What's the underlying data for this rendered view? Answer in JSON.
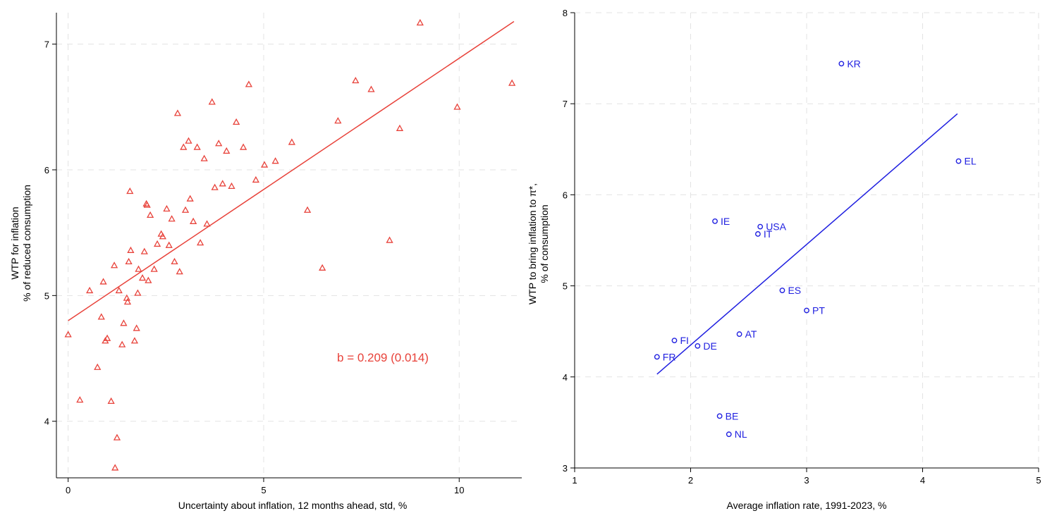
{
  "chart_data": [
    {
      "type": "scatter",
      "title": "",
      "xlabel": "Uncertainty about inflation, 12 months ahead, std, %",
      "ylabel_lines": [
        "WTP for inflation",
        "% of reduced consumption"
      ],
      "xlim": [
        -0.3,
        11.6
      ],
      "ylim": [
        3.55,
        7.25
      ],
      "xticks": [
        0,
        5,
        10
      ],
      "yticks": [
        4,
        5,
        6,
        7
      ],
      "grid": true,
      "marker": "triangle",
      "color": "#e8423a",
      "annotation": "b = 0.209 (0.014)",
      "fit_line": {
        "x": [
          0.0,
          11.4
        ],
        "y": [
          4.8,
          7.18
        ]
      },
      "series": [
        {
          "points": [
            [
              0.0,
              4.69
            ],
            [
              0.3,
              4.17
            ],
            [
              0.55,
              5.04
            ],
            [
              0.75,
              4.43
            ],
            [
              0.85,
              4.83
            ],
            [
              0.9,
              5.11
            ],
            [
              0.95,
              4.64
            ],
            [
              1.0,
              4.66
            ],
            [
              1.1,
              4.16
            ],
            [
              1.18,
              5.24
            ],
            [
              1.2,
              3.63
            ],
            [
              1.25,
              3.87
            ],
            [
              1.3,
              5.04
            ],
            [
              1.38,
              4.61
            ],
            [
              1.42,
              4.78
            ],
            [
              1.5,
              4.98
            ],
            [
              1.52,
              4.95
            ],
            [
              1.55,
              5.27
            ],
            [
              1.58,
              5.83
            ],
            [
              1.6,
              5.36
            ],
            [
              1.7,
              4.64
            ],
            [
              1.75,
              4.74
            ],
            [
              1.78,
              5.02
            ],
            [
              1.8,
              5.21
            ],
            [
              1.9,
              5.14
            ],
            [
              1.95,
              5.35
            ],
            [
              2.0,
              5.73
            ],
            [
              2.02,
              5.72
            ],
            [
              2.05,
              5.12
            ],
            [
              2.1,
              5.64
            ],
            [
              2.2,
              5.21
            ],
            [
              2.28,
              5.41
            ],
            [
              2.38,
              5.49
            ],
            [
              2.42,
              5.47
            ],
            [
              2.52,
              5.69
            ],
            [
              2.58,
              5.4
            ],
            [
              2.65,
              5.61
            ],
            [
              2.72,
              5.27
            ],
            [
              2.8,
              6.45
            ],
            [
              2.85,
              5.19
            ],
            [
              2.95,
              6.18
            ],
            [
              3.0,
              5.68
            ],
            [
              3.08,
              6.23
            ],
            [
              3.12,
              5.77
            ],
            [
              3.2,
              5.59
            ],
            [
              3.3,
              6.18
            ],
            [
              3.38,
              5.42
            ],
            [
              3.48,
              6.09
            ],
            [
              3.55,
              5.57
            ],
            [
              3.68,
              6.54
            ],
            [
              3.75,
              5.86
            ],
            [
              3.85,
              6.21
            ],
            [
              3.95,
              5.89
            ],
            [
              4.05,
              6.15
            ],
            [
              4.18,
              5.87
            ],
            [
              4.3,
              6.38
            ],
            [
              4.48,
              6.18
            ],
            [
              4.62,
              6.68
            ],
            [
              4.8,
              5.92
            ],
            [
              5.02,
              6.04
            ],
            [
              5.3,
              6.07
            ],
            [
              5.72,
              6.22
            ],
            [
              6.12,
              5.68
            ],
            [
              6.5,
              5.22
            ],
            [
              6.9,
              6.39
            ],
            [
              7.35,
              6.71
            ],
            [
              7.75,
              6.64
            ],
            [
              8.22,
              5.44
            ],
            [
              8.48,
              6.33
            ],
            [
              9.0,
              7.17
            ],
            [
              9.95,
              6.5
            ],
            [
              11.35,
              6.69
            ]
          ]
        }
      ]
    },
    {
      "type": "scatter",
      "title": "",
      "xlabel": "Average inflation rate, 1991-2023, %",
      "ylabel_lines": [
        "WTP to bring inflation to π*,",
        "% of consumption"
      ],
      "xlim": [
        1,
        5
      ],
      "ylim": [
        3,
        8
      ],
      "xticks": [
        1,
        2,
        3,
        4,
        5
      ],
      "yticks": [
        3,
        4,
        5,
        6,
        7,
        8
      ],
      "grid": true,
      "marker": "circle",
      "color": "#1f1fe0",
      "fit_line": {
        "x": [
          1.71,
          4.3
        ],
        "y": [
          4.03,
          6.89
        ]
      },
      "series": [
        {
          "points": [
            {
              "label": "KR",
              "x": 3.3,
              "y": 7.44
            },
            {
              "label": "EL",
              "x": 4.31,
              "y": 6.37
            },
            {
              "label": "IE",
              "x": 2.21,
              "y": 5.71
            },
            {
              "label": "USA",
              "x": 2.6,
              "y": 5.65
            },
            {
              "label": "IT",
              "x": 2.58,
              "y": 5.57
            },
            {
              "label": "ES",
              "x": 2.79,
              "y": 4.95
            },
            {
              "label": "PT",
              "x": 3.0,
              "y": 4.73
            },
            {
              "label": "AT",
              "x": 2.42,
              "y": 4.47
            },
            {
              "label": "FI",
              "x": 1.86,
              "y": 4.4
            },
            {
              "label": "DE",
              "x": 2.06,
              "y": 4.34
            },
            {
              "label": "FR",
              "x": 1.71,
              "y": 4.22
            },
            {
              "label": "BE",
              "x": 2.25,
              "y": 3.57
            },
            {
              "label": "NL",
              "x": 2.33,
              "y": 3.37
            }
          ]
        }
      ]
    }
  ]
}
